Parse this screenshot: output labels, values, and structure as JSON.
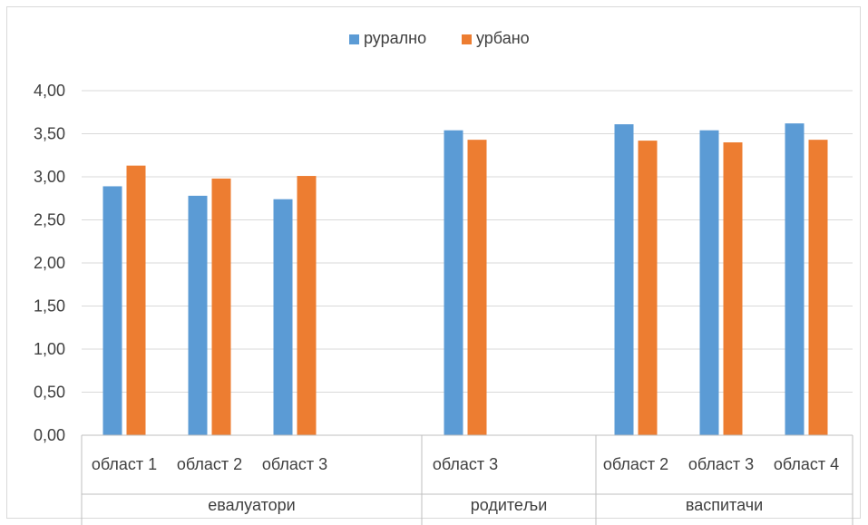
{
  "chart_data": {
    "type": "bar",
    "title": "",
    "xlabel": "",
    "ylabel": "",
    "ylim": [
      0,
      4
    ],
    "yticks": [
      "0,00",
      "0,50",
      "1,00",
      "1,50",
      "2,00",
      "2,50",
      "3,00",
      "3,50",
      "4,00"
    ],
    "grid": true,
    "legend_position": "top",
    "groups": [
      {
        "name": "евалуатори",
        "categories": [
          "област 1",
          "област 2",
          "област 3"
        ]
      },
      {
        "name": "родитељи",
        "categories": [
          "област 3"
        ]
      },
      {
        "name": "васпитачи",
        "categories": [
          "област 2",
          "област 3",
          "област 4"
        ]
      }
    ],
    "categories": [
      "област 1",
      "област 2",
      "област 3",
      "област 3",
      "област 2",
      "област 3",
      "област 4"
    ],
    "series": [
      {
        "name": "рурално",
        "color": "#5b9bd5",
        "values": [
          2.89,
          2.78,
          2.74,
          3.54,
          3.61,
          3.54,
          3.62
        ]
      },
      {
        "name": "урбано",
        "color": "#ed7d31",
        "values": [
          3.13,
          2.98,
          3.01,
          3.43,
          3.42,
          3.4,
          3.43
        ]
      }
    ]
  },
  "colors": {
    "gridline": "#d9d9d9",
    "axis": "#bfbfbf",
    "text": "#404040"
  }
}
